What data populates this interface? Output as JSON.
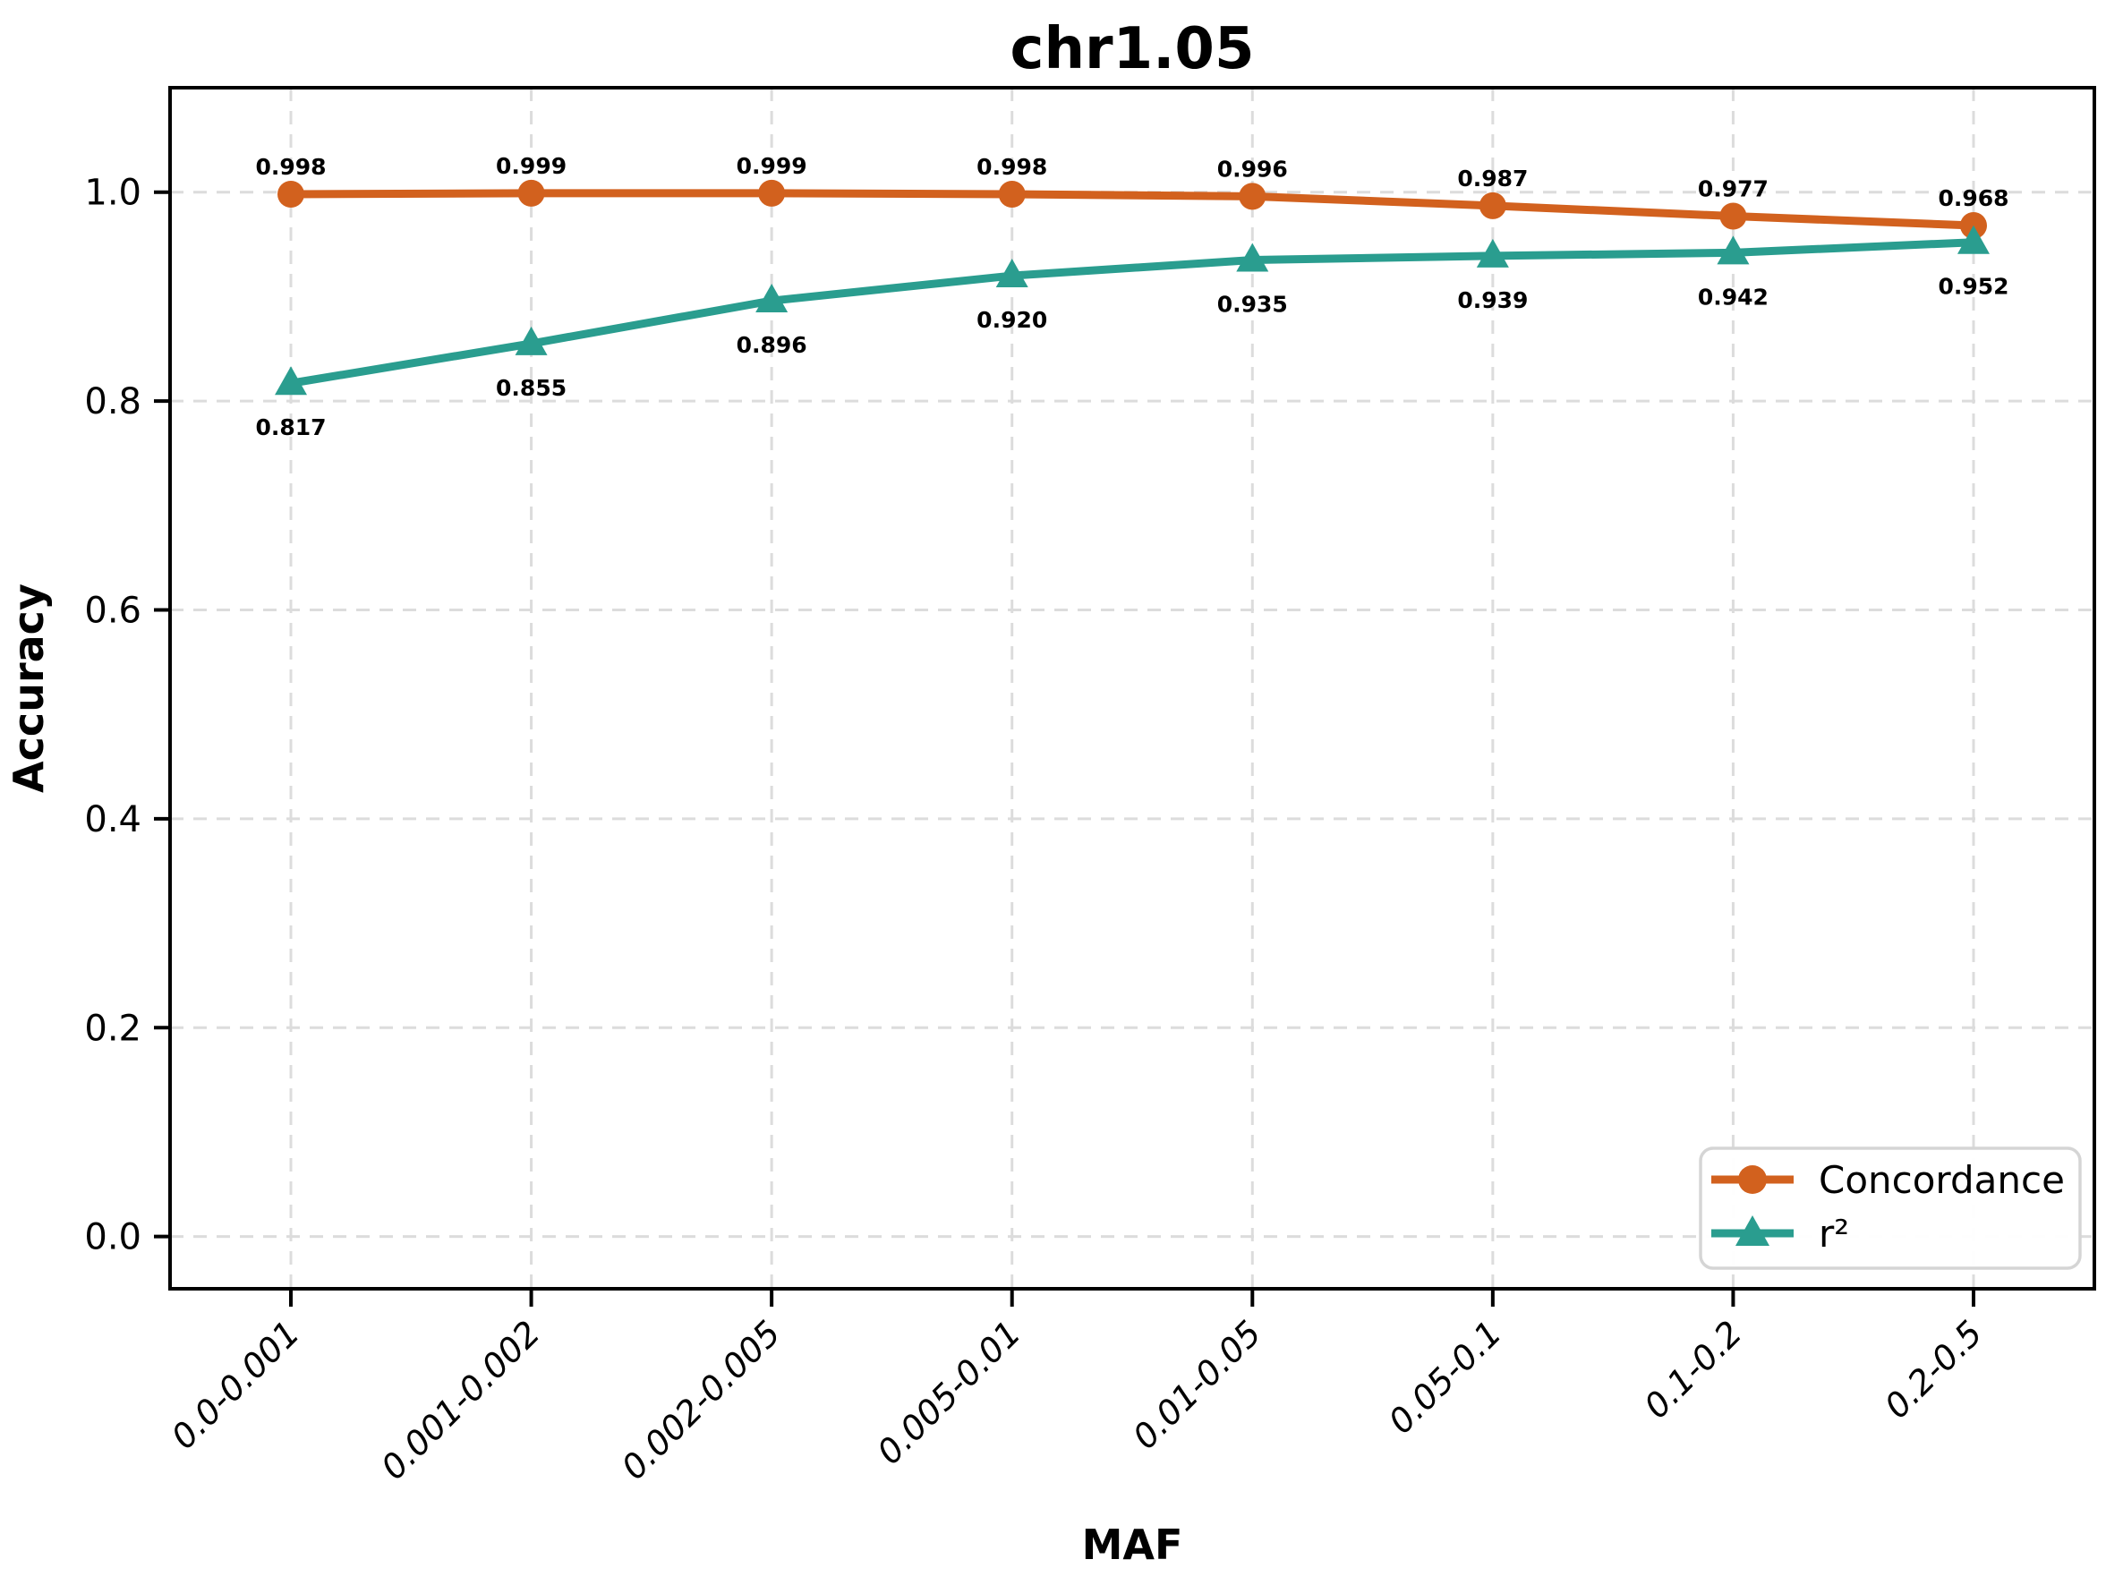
{
  "chart_data": {
    "type": "line",
    "title": "chr1.05",
    "xlabel": "MAF",
    "ylabel": "Accuracy",
    "categories": [
      "0.0-0.001",
      "0.001-0.002",
      "0.002-0.005",
      "0.005-0.01",
      "0.01-0.05",
      "0.05-0.1",
      "0.1-0.2",
      "0.2-0.5"
    ],
    "series": [
      {
        "name": "Concordance",
        "marker": "circle",
        "color": "#d2611e",
        "label_position": "above",
        "values": [
          0.998,
          0.999,
          0.999,
          0.998,
          0.996,
          0.987,
          0.977,
          0.968
        ]
      },
      {
        "name": "r²",
        "marker": "triangle",
        "color": "#2a9d8f",
        "label_position": "below",
        "values": [
          0.817,
          0.855,
          0.896,
          0.92,
          0.935,
          0.939,
          0.942,
          0.952
        ]
      }
    ],
    "yticks": [
      0.0,
      0.2,
      0.4,
      0.6,
      0.8,
      1.0
    ],
    "ylim": [
      -0.05,
      1.1
    ],
    "grid": true,
    "grid_style": "dashed",
    "legend_position": "lower right",
    "data_labels": true,
    "data_label_decimals": 3,
    "ytick_decimals": 1,
    "colors": {
      "grid": "#dcdcdc",
      "spine": "#000000",
      "background": "#ffffff",
      "text": "#000000",
      "legend_border": "#d5d5d5"
    }
  }
}
